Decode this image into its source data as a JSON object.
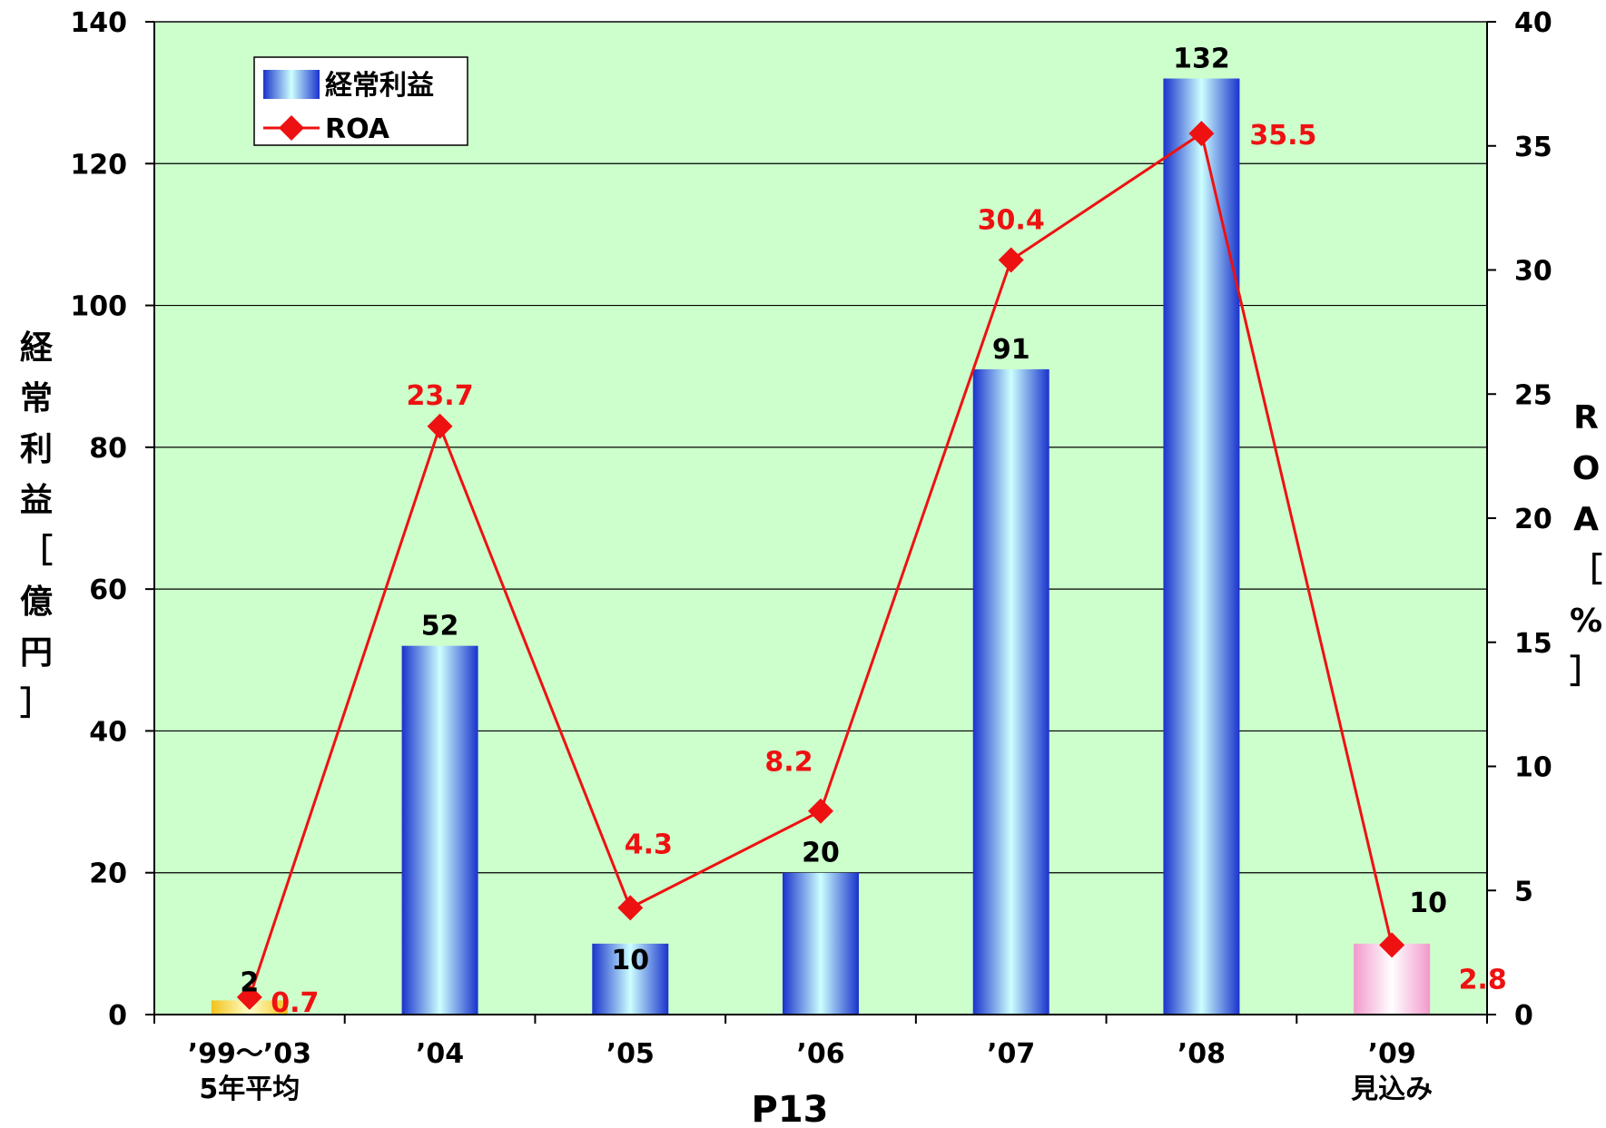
{
  "chart_data": {
    "type": "bar",
    "caption": "P13",
    "categories": [
      {
        "line1": "’99〜’03",
        "line2": "5年平均"
      },
      {
        "line1": "’04",
        "line2": ""
      },
      {
        "line1": "’05",
        "line2": ""
      },
      {
        "line1": "’06",
        "line2": ""
      },
      {
        "line1": "’07",
        "line2": ""
      },
      {
        "line1": "’08",
        "line2": ""
      },
      {
        "line1": "’09",
        "line2": "見込み"
      }
    ],
    "series": [
      {
        "name": "経常利益",
        "kind": "bar",
        "axis": "left",
        "values": [
          2,
          52,
          10,
          20,
          91,
          132,
          10
        ],
        "labels": [
          "2",
          "52",
          "10",
          "20",
          "91",
          "132",
          "10"
        ],
        "bar_colors": [
          "gold",
          "blue",
          "blue",
          "blue",
          "blue",
          "blue",
          "pink"
        ]
      },
      {
        "name": "ROA",
        "kind": "line",
        "axis": "right",
        "marker": "diamond",
        "color": "#ee1111",
        "values": [
          0.7,
          23.7,
          4.3,
          8.2,
          30.4,
          35.5,
          2.8
        ],
        "labels": [
          "0.7",
          "23.7",
          "4.3",
          "8.2",
          "30.4",
          "35.5",
          "2.8"
        ]
      }
    ],
    "y_left": {
      "label_chars": [
        "経",
        "常",
        "利",
        "益",
        "［",
        "億",
        "円",
        "］"
      ],
      "range": [
        0,
        140
      ],
      "ticks": [
        "0",
        "20",
        "40",
        "60",
        "80",
        "100",
        "120",
        "140"
      ]
    },
    "y_right": {
      "label_chars": [
        "R",
        "O",
        "A",
        "［",
        "%",
        "］"
      ],
      "range": [
        0,
        40
      ],
      "ticks": [
        "0",
        "5",
        "10",
        "15",
        "20",
        "25",
        "30",
        "35",
        "40"
      ]
    },
    "grid": true,
    "legend_position": "top-left",
    "colors": {
      "plot_background": "#ccffcc",
      "grid": "#000000",
      "roa_line": "#ee1111",
      "bar_blue_edge": "#1a33cc",
      "bar_blue_center": "#ccffff",
      "bar_gold_edge": "#f2c21b",
      "bar_gold_center": "#ffffcc",
      "bar_pink_edge": "#f299cc",
      "bar_pink_center": "#ffffff"
    }
  }
}
